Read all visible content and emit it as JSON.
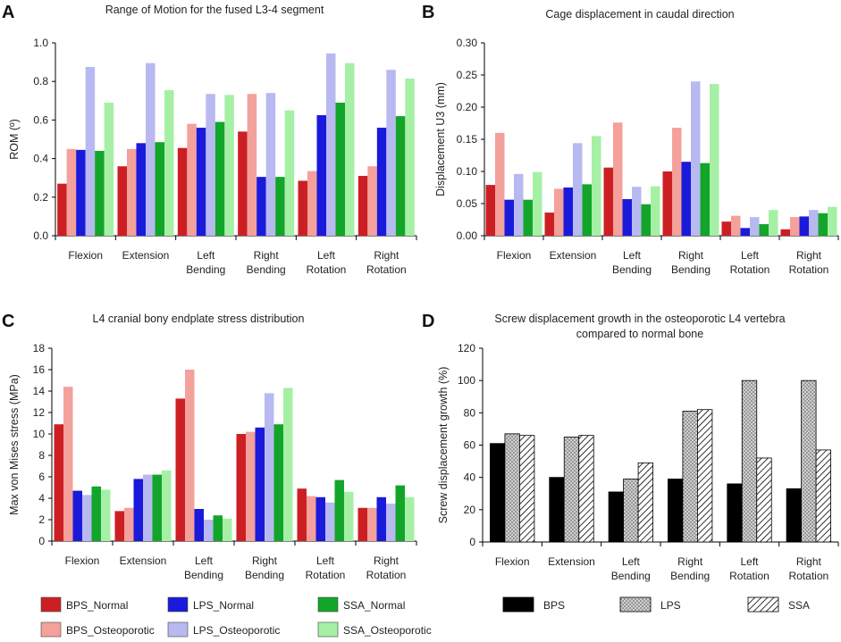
{
  "panel_letters": [
    "A",
    "B",
    "C",
    "D"
  ],
  "colors": {
    "BPS_Normal": "#cc1f24",
    "BPS_Osteoporotic": "#f4a09b",
    "LPS_Normal": "#1a1adb",
    "LPS_Osteoporotic": "#b8b9f0",
    "SSA_Normal": "#12a52a",
    "SSA_Osteoporotic": "#a6f0a6",
    "black": "#000000",
    "dotted_fill": "#c8c8c8"
  },
  "legend_left": [
    {
      "key": "BPS_Normal",
      "label": "BPS_Normal"
    },
    {
      "key": "LPS_Normal",
      "label": "LPS_Normal"
    },
    {
      "key": "SSA_Normal",
      "label": "SSA_Normal"
    },
    {
      "key": "BPS_Osteoporotic",
      "label": "BPS_Osteoporotic"
    },
    {
      "key": "LPS_Osteoporotic",
      "label": "LPS_Osteoporotic"
    },
    {
      "key": "SSA_Osteoporotic",
      "label": "SSA_Osteoporotic"
    }
  ],
  "legend_right": [
    {
      "pattern": "solid",
      "label": "BPS"
    },
    {
      "pattern": "dots",
      "label": "LPS"
    },
    {
      "pattern": "hatch",
      "label": "SSA"
    }
  ],
  "chart_data": [
    {
      "id": "A",
      "type": "bar",
      "title": [
        "Range of Motion for the fused L3-4 segment"
      ],
      "xlabel": "",
      "ylabel": "ROM (º)",
      "ylim": [
        0,
        1.0
      ],
      "yticks": [
        "0.0",
        "0.2",
        "0.4",
        "0.6",
        "0.8",
        "1.0"
      ],
      "categories": [
        [
          "Flexion"
        ],
        [
          "Extension"
        ],
        [
          "Left",
          "Bending"
        ],
        [
          "Right",
          "Bending"
        ],
        [
          "Left",
          "Rotation"
        ],
        [
          "Right",
          "Rotation"
        ]
      ],
      "series": [
        {
          "name": "BPS_Normal",
          "values": [
            0.27,
            0.36,
            0.455,
            0.54,
            0.285,
            0.31
          ]
        },
        {
          "name": "BPS_Osteoporotic",
          "values": [
            0.45,
            0.45,
            0.58,
            0.735,
            0.335,
            0.36
          ]
        },
        {
          "name": "LPS_Normal",
          "values": [
            0.445,
            0.48,
            0.56,
            0.305,
            0.625,
            0.56
          ]
        },
        {
          "name": "LPS_Osteoporotic",
          "values": [
            0.875,
            0.895,
            0.735,
            0.74,
            0.945,
            0.86
          ]
        },
        {
          "name": "SSA_Normal",
          "values": [
            0.44,
            0.485,
            0.59,
            0.305,
            0.69,
            0.62
          ]
        },
        {
          "name": "SSA_Osteoporotic",
          "values": [
            0.69,
            0.755,
            0.73,
            0.65,
            0.895,
            0.815
          ]
        }
      ]
    },
    {
      "id": "B",
      "type": "bar",
      "title": [
        "Cage displacement in caudal direction"
      ],
      "xlabel": "",
      "ylabel": "Displacement  U3 (mm)",
      "ylim": [
        0,
        0.3
      ],
      "yticks": [
        "0.00",
        "0.05",
        "0.10",
        "0.15",
        "0.20",
        "0.25",
        "0.30"
      ],
      "categories": [
        [
          "Flexion"
        ],
        [
          "Extension"
        ],
        [
          "Left",
          "Bending"
        ],
        [
          "Right",
          "Bending"
        ],
        [
          "Left",
          "Rotation"
        ],
        [
          "Right",
          "Rotation"
        ]
      ],
      "series": [
        {
          "name": "BPS_Normal",
          "values": [
            0.079,
            0.036,
            0.106,
            0.1,
            0.022,
            0.01
          ]
        },
        {
          "name": "BPS_Osteoporotic",
          "values": [
            0.16,
            0.073,
            0.176,
            0.168,
            0.031,
            0.029
          ]
        },
        {
          "name": "LPS_Normal",
          "values": [
            0.056,
            0.075,
            0.057,
            0.115,
            0.012,
            0.03
          ]
        },
        {
          "name": "LPS_Osteoporotic",
          "values": [
            0.096,
            0.144,
            0.076,
            0.24,
            0.029,
            0.04
          ]
        },
        {
          "name": "SSA_Normal",
          "values": [
            0.056,
            0.08,
            0.049,
            0.113,
            0.018,
            0.035
          ]
        },
        {
          "name": "SSA_Osteoporotic",
          "values": [
            0.099,
            0.155,
            0.077,
            0.236,
            0.04,
            0.045
          ]
        }
      ]
    },
    {
      "id": "C",
      "type": "bar",
      "title": [
        "L4 cranial bony endplate stress distribution"
      ],
      "xlabel": "",
      "ylabel": "Max von Mises stress (MPa)",
      "ylim": [
        0,
        18
      ],
      "yticks": [
        "0",
        "2",
        "4",
        "6",
        "8",
        "10",
        "12",
        "14",
        "16",
        "18"
      ],
      "categories": [
        [
          "Flexion"
        ],
        [
          "Extension"
        ],
        [
          "Left",
          "Bending"
        ],
        [
          "Right",
          "Bending"
        ],
        [
          "Left",
          "Rotation"
        ],
        [
          "Right",
          "Rotation"
        ]
      ],
      "series": [
        {
          "name": "BPS_Normal",
          "values": [
            10.9,
            2.8,
            13.3,
            10.0,
            4.9,
            3.1
          ]
        },
        {
          "name": "BPS_Osteoporotic",
          "values": [
            14.4,
            3.1,
            16.0,
            10.2,
            4.2,
            3.1
          ]
        },
        {
          "name": "LPS_Normal",
          "values": [
            4.7,
            5.8,
            3.0,
            10.6,
            4.1,
            4.1
          ]
        },
        {
          "name": "LPS_Osteoporotic",
          "values": [
            4.3,
            6.2,
            2.0,
            13.8,
            3.6,
            3.5
          ]
        },
        {
          "name": "SSA_Normal",
          "values": [
            5.1,
            6.2,
            2.4,
            10.9,
            5.7,
            5.2
          ]
        },
        {
          "name": "SSA_Osteoporotic",
          "values": [
            4.8,
            6.6,
            2.1,
            14.3,
            4.6,
            4.1
          ]
        }
      ]
    },
    {
      "id": "D",
      "type": "bar",
      "title": [
        "Screw displacement growth in the osteoporotic L4 vertebra",
        "compared to normal bone"
      ],
      "xlabel": "",
      "ylabel": "Screw displacement growth (%)",
      "ylim": [
        0,
        120
      ],
      "yticks": [
        "0",
        "20",
        "40",
        "60",
        "80",
        "100",
        "120"
      ],
      "categories": [
        [
          "Flexion"
        ],
        [
          "Extension"
        ],
        [
          "Left",
          "Bending"
        ],
        [
          "Right",
          "Bending"
        ],
        [
          "Left",
          "Rotation"
        ],
        [
          "Right",
          "Rotation"
        ]
      ],
      "series": [
        {
          "name": "BPS",
          "values": [
            61,
            40,
            31,
            39,
            36,
            33
          ]
        },
        {
          "name": "LPS",
          "values": [
            67,
            65,
            39,
            81,
            100,
            100
          ]
        },
        {
          "name": "SSA",
          "values": [
            66,
            66,
            49,
            82,
            52,
            57
          ]
        }
      ]
    }
  ]
}
